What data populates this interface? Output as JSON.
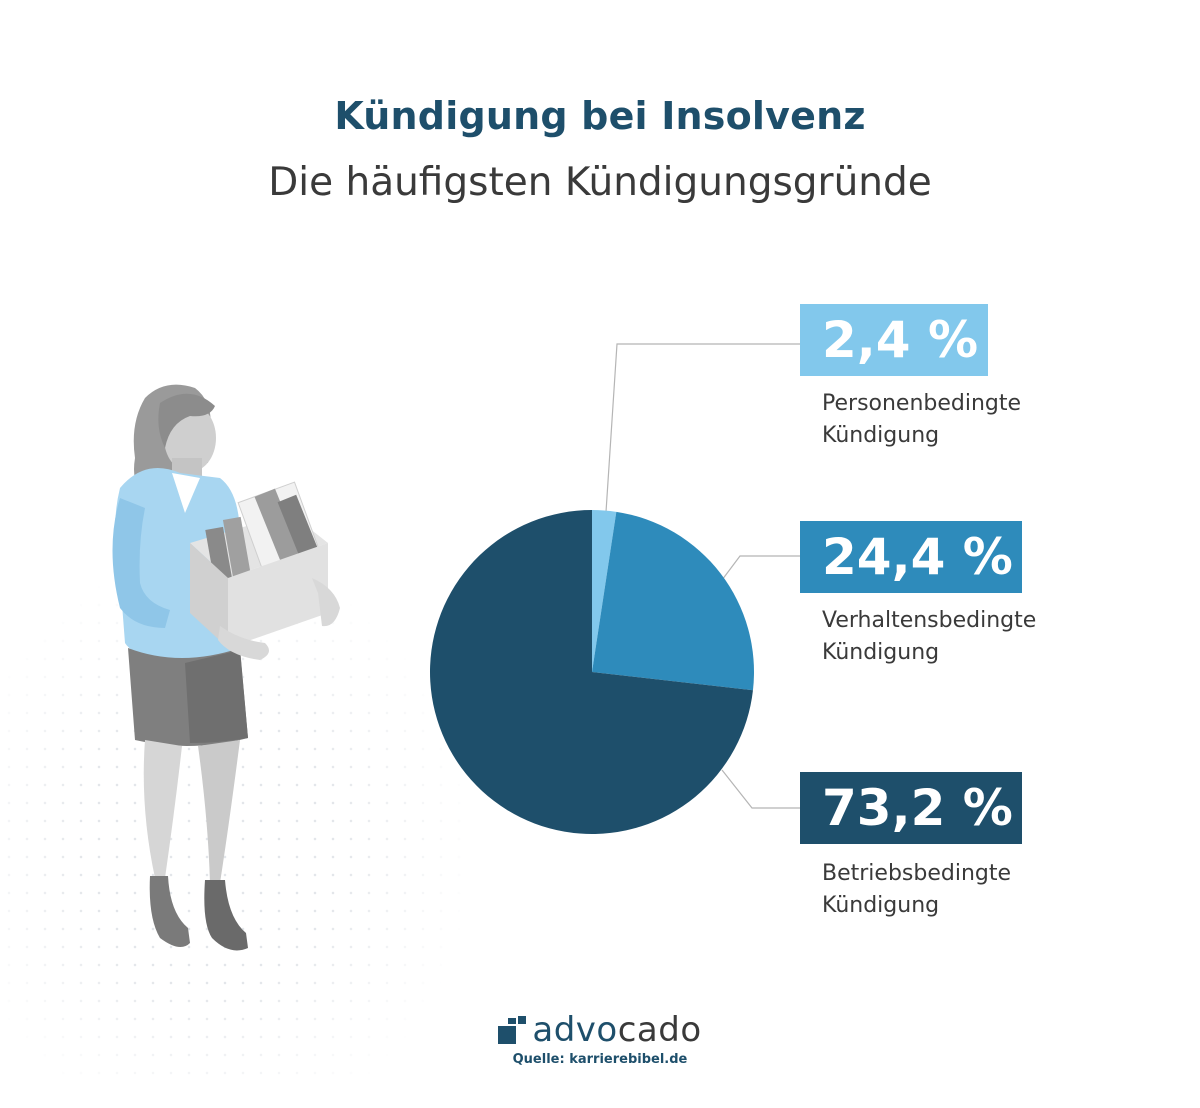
{
  "header": {
    "title": "Kündigung bei Insolvenz",
    "subtitle": "Die häufigsten Kündigungsgründe"
  },
  "colors": {
    "personenbedingt": "#82c8ec",
    "verhaltensbedingt": "#2e8bbb",
    "betriebsbedingt": "#1e4f6b",
    "title": "#1e4f6b",
    "text": "#3a3a3a"
  },
  "chart_data": {
    "type": "pie",
    "title": "Kündigung bei Insolvenz",
    "subtitle": "Die häufigsten Kündigungsgründe",
    "slices": [
      {
        "label": "Personenbedingte Kündigung",
        "value": 2.4,
        "value_label": "2,4 %",
        "color": "#82c8ec"
      },
      {
        "label": "Verhaltensbedingte Kündigung",
        "value": 24.4,
        "value_label": "24,4 %",
        "color": "#2e8bbb"
      },
      {
        "label": "Betriebsbedingte Kündigung",
        "value": 73.2,
        "value_label": "73,2 %",
        "color": "#1e4f6b"
      }
    ],
    "legend": "right"
  },
  "brand": {
    "logo_bold": "advo",
    "logo_light": "cado",
    "source": "Quelle: karrierebibel.de"
  }
}
